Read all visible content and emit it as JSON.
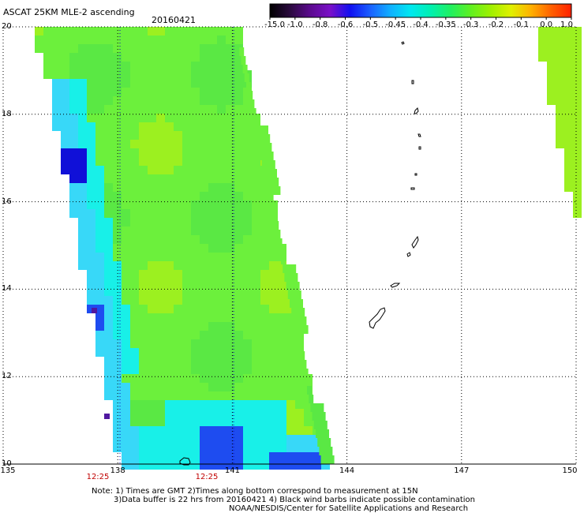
{
  "header": {
    "title": "ASCAT 25KM MLE-2 ascending",
    "date": "20160421"
  },
  "colorbar": {
    "colors": [
      "#000000",
      "#2a0a3e",
      "#5b0a8e",
      "#7a10c8",
      "#1010f0",
      "#1a60ff",
      "#10b0ff",
      "#00e8f0",
      "#00f0b0",
      "#20f060",
      "#60f020",
      "#a0f000",
      "#e0f000",
      "#ffb000",
      "#ff6000",
      "#ff2000"
    ],
    "labels": [
      "-15.0",
      "-1.0",
      "-0.8",
      "-0.6",
      "-0.5",
      "-0.45",
      "-0.4",
      "-0.35",
      "-0.3",
      "-0.2",
      "-0.1",
      "0.0",
      "1.0"
    ]
  },
  "axes": {
    "lat_ticks": [
      "20",
      "18",
      "16",
      "14",
      "12",
      "10"
    ],
    "lon_ticks": [
      "135",
      "138",
      "141",
      "144",
      "147",
      "150"
    ],
    "time_labels": [
      "12:25",
      "12:25"
    ],
    "lat_range": [
      10,
      20
    ],
    "lon_range": [
      135,
      150
    ]
  },
  "notes": {
    "line1": "Note: 1) Times are GMT 2)Times along bottom correspond to measurement at 15N",
    "line2": "3)Data buffer is 22 hrs from 20160421 4) Black wind barbs indicate possible contamination",
    "line3": "NOAA/NESDIS/Center for Satellite Applications and Research"
  },
  "palette": {
    "green": "#6cf03c",
    "green2": "#5ae844",
    "lime": "#9cf020",
    "cyan": "#18f0e8",
    "cyan2": "#38d8f8",
    "blue": "#1e4cf0",
    "blue2": "#1010d8",
    "purple": "#5018a0",
    "axis_color": "#0000c0",
    "time_color": "#c00000"
  }
}
